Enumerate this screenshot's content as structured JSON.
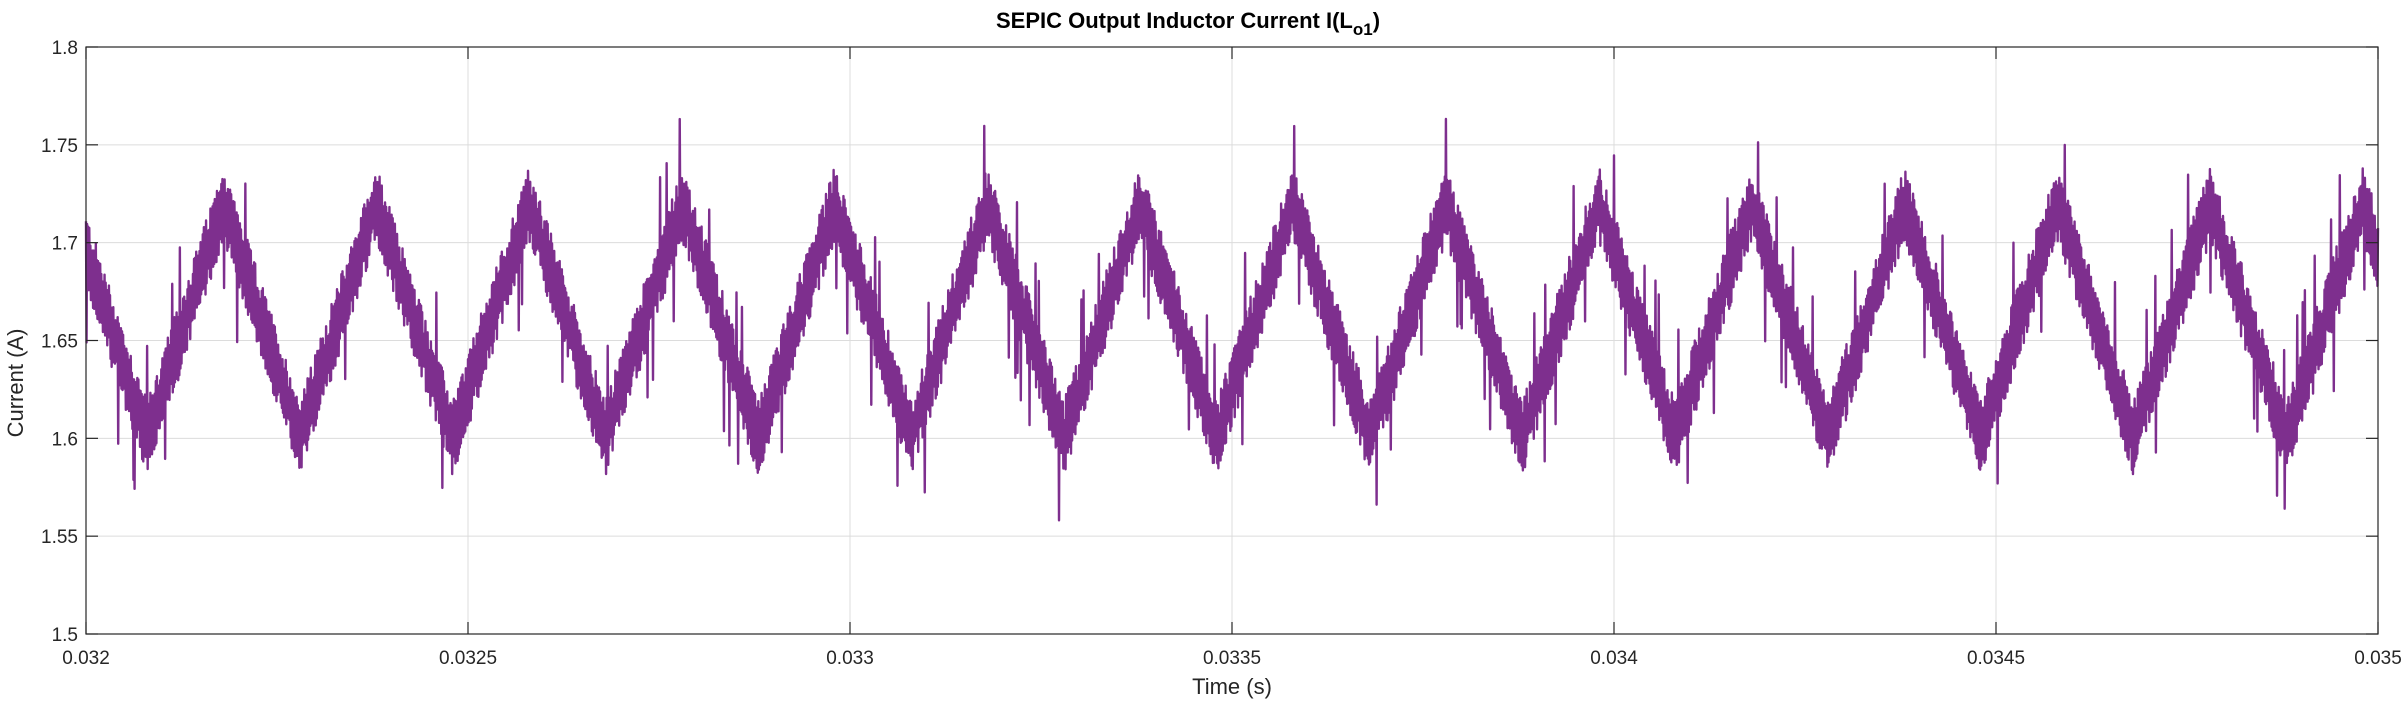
{
  "chart_data": {
    "type": "line",
    "title": "SEPIC Output Inductor Current I(L",
    "title_sub": "o1",
    "title_end": ")",
    "xlabel": "Time (s)",
    "ylabel": "Current (A)",
    "xlim": [
      0.032,
      0.035
    ],
    "ylim": [
      1.5,
      1.8
    ],
    "xticks": [
      0.032,
      0.0325,
      0.033,
      0.0335,
      0.034,
      0.0345,
      0.035
    ],
    "xtick_labels": [
      "0.032",
      "0.0325",
      "0.033",
      "0.0335",
      "0.034",
      "0.0345",
      "0.035"
    ],
    "yticks": [
      1.5,
      1.55,
      1.6,
      1.65,
      1.7,
      1.75,
      1.8
    ],
    "ytick_labels": [
      "1.5",
      "1.55",
      "1.6",
      "1.65",
      "1.7",
      "1.75",
      "1.8"
    ],
    "grid": true,
    "line_color": "#7e2f8e",
    "ripple_period": 0.0002,
    "ripple_min": 1.6,
    "ripple_max": 1.72,
    "switching_noise_amplitude": 0.035,
    "series": [
      {
        "x": [
          0.032,
          0.0321,
          0.0322,
          0.0323,
          0.0324,
          0.0325,
          0.0326,
          0.0327,
          0.0328,
          0.0329,
          0.033,
          0.0331,
          0.0332,
          0.0333,
          0.0334,
          0.0335,
          0.0336,
          0.0337,
          0.0338,
          0.0339,
          0.034,
          0.0341,
          0.0342,
          0.0343,
          0.0344,
          0.0345,
          0.0346,
          0.0347,
          0.0348,
          0.0349,
          0.035
        ],
        "y": [
          1.61,
          1.72,
          1.6,
          1.72,
          1.6,
          1.72,
          1.6,
          1.72,
          1.6,
          1.72,
          1.6,
          1.72,
          1.6,
          1.72,
          1.6,
          1.72,
          1.6,
          1.72,
          1.6,
          1.72,
          1.6,
          1.72,
          1.6,
          1.72,
          1.6,
          1.72,
          1.6,
          1.72,
          1.6,
          1.72,
          1.6
        ]
      }
    ]
  }
}
